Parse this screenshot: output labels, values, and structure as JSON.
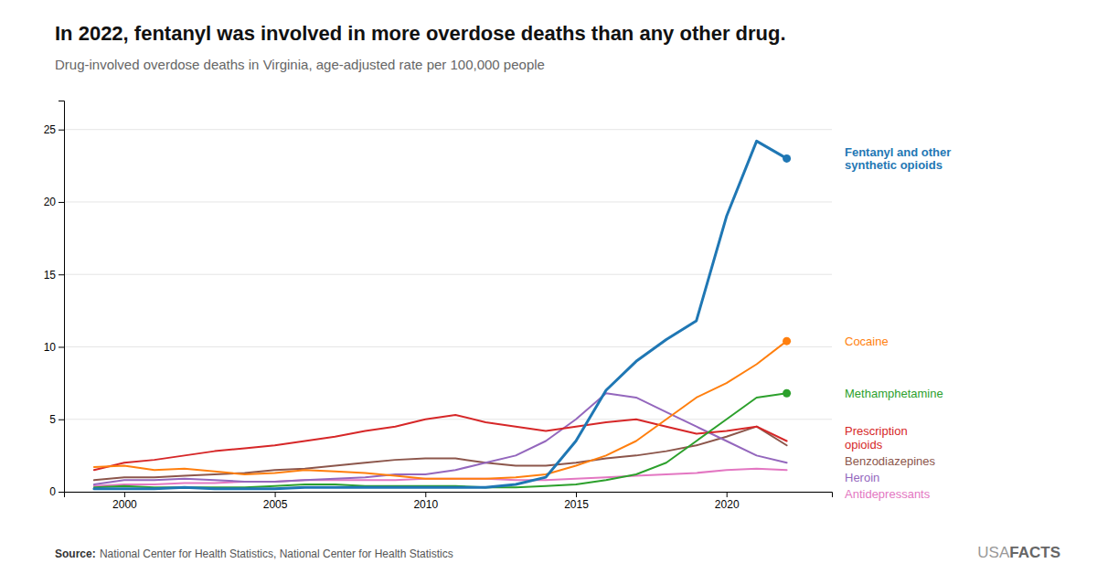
{
  "chart_data": {
    "type": "line",
    "title": "In 2022, fentanyl was involved in more overdose deaths than any other drug.",
    "subtitle": "Drug-involved overdose deaths in Virginia, age-adjusted rate per 100,000 people",
    "source_label": "Source:",
    "source": "National Center for Health Statistics, National Center for Health Statistics",
    "logo": [
      "USA",
      "FACTS"
    ],
    "x": [
      1999,
      2000,
      2001,
      2002,
      2003,
      2004,
      2005,
      2006,
      2007,
      2008,
      2009,
      2010,
      2011,
      2012,
      2013,
      2014,
      2015,
      2016,
      2017,
      2018,
      2019,
      2020,
      2021,
      2022
    ],
    "series": [
      {
        "name": "Fentanyl and other\nsynthetic opioids",
        "marker": "circle",
        "values": [
          0.2,
          0.2,
          0.2,
          0.3,
          0.2,
          0.2,
          0.2,
          0.3,
          0.3,
          0.3,
          0.3,
          0.3,
          0.3,
          0.3,
          0.5,
          1.0,
          3.5,
          7.0,
          9.0,
          10.5,
          11.8,
          19.0,
          24.2,
          23.0
        ]
      },
      {
        "name": "Cocaine",
        "marker": "circle",
        "values": [
          1.7,
          1.8,
          1.5,
          1.6,
          1.4,
          1.2,
          1.3,
          1.5,
          1.4,
          1.3,
          1.1,
          0.9,
          0.9,
          0.9,
          1.0,
          1.2,
          1.8,
          2.5,
          3.5,
          5.0,
          6.5,
          7.5,
          8.8,
          10.4
        ]
      },
      {
        "name": "Methamphetamine",
        "marker": "circle",
        "values": [
          0.3,
          0.4,
          0.3,
          0.3,
          0.3,
          0.3,
          0.4,
          0.5,
          0.5,
          0.4,
          0.4,
          0.4,
          0.4,
          0.3,
          0.3,
          0.4,
          0.5,
          0.8,
          1.2,
          2.0,
          3.5,
          5.0,
          6.5,
          6.8
        ]
      },
      {
        "name": "Prescription\nopioids",
        "values": [
          1.5,
          2.0,
          2.2,
          2.5,
          2.8,
          3.0,
          3.2,
          3.5,
          3.8,
          4.2,
          4.5,
          5.0,
          5.3,
          4.8,
          4.5,
          4.2,
          4.5,
          4.8,
          5.0,
          4.5,
          4.0,
          4.2,
          4.5,
          3.5
        ]
      },
      {
        "name": "Heroin",
        "values": [
          0.5,
          0.8,
          0.8,
          0.9,
          0.8,
          0.7,
          0.7,
          0.8,
          0.9,
          1.0,
          1.2,
          1.2,
          1.5,
          2.0,
          2.5,
          3.5,
          5.0,
          6.8,
          6.5,
          5.5,
          4.5,
          3.5,
          2.5,
          2.0
        ]
      },
      {
        "name": "Benzodiazepines",
        "values": [
          0.8,
          1.0,
          1.0,
          1.1,
          1.2,
          1.3,
          1.5,
          1.6,
          1.8,
          2.0,
          2.2,
          2.3,
          2.3,
          2.0,
          1.8,
          1.8,
          2.0,
          2.3,
          2.5,
          2.8,
          3.2,
          3.8,
          4.5,
          3.2
        ]
      },
      {
        "name": "Antidepressants",
        "values": [
          0.4,
          0.5,
          0.5,
          0.6,
          0.6,
          0.7,
          0.7,
          0.8,
          0.8,
          0.8,
          0.8,
          0.9,
          0.9,
          0.9,
          0.8,
          0.8,
          0.9,
          1.0,
          1.1,
          1.2,
          1.3,
          1.5,
          1.6,
          1.5
        ]
      }
    ],
    "xlim": [
      1998,
      2023.5
    ],
    "xticks": [
      2000,
      2005,
      2010,
      2015,
      2020
    ],
    "ylim": [
      0,
      27
    ],
    "yticks": [
      0,
      5,
      10,
      15,
      20,
      25
    ],
    "grid": true
  }
}
